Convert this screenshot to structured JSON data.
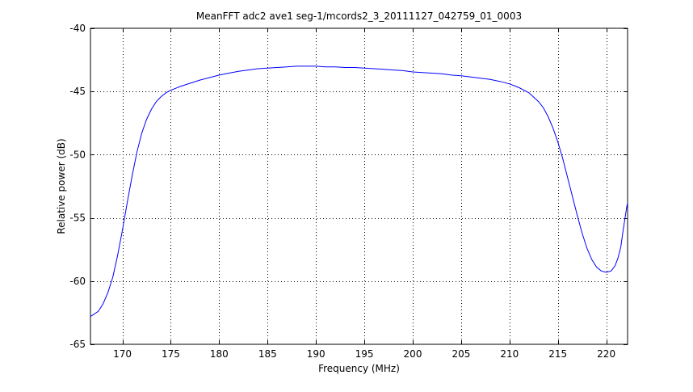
{
  "chart_data": {
    "type": "line",
    "title": "MeanFFT adc2 ave1 seg-1/mcords2_3_20111127_042759_01_0003",
    "xlabel": "Frequency (MHz)",
    "ylabel": "Relative power (dB)",
    "xlim": [
      166.7,
      222.2
    ],
    "ylim": [
      -65,
      -40
    ],
    "xticks": [
      170,
      175,
      180,
      185,
      190,
      195,
      200,
      205,
      210,
      215,
      220
    ],
    "yticks": [
      -40,
      -45,
      -50,
      -55,
      -60,
      -65
    ],
    "grid": true,
    "grid_style": "dotted",
    "series": [
      {
        "color": "#0000ff",
        "x": [
          166.7,
          167.5,
          168.0,
          168.5,
          169.0,
          169.5,
          170.0,
          170.5,
          171.0,
          171.5,
          172.0,
          172.5,
          173.0,
          173.5,
          174.0,
          174.5,
          175.0,
          175.5,
          176.0,
          177.0,
          178.0,
          179.0,
          180.0,
          181.0,
          182.0,
          183.0,
          184.0,
          185.0,
          186.0,
          187.0,
          188.0,
          189.0,
          190.0,
          191.0,
          192.0,
          193.0,
          194.0,
          195.0,
          196.0,
          197.0,
          198.0,
          199.0,
          200.0,
          201.0,
          202.0,
          203.0,
          204.0,
          205.0,
          206.0,
          207.0,
          208.0,
          209.0,
          210.0,
          211.0,
          212.0,
          213.0,
          213.5,
          214.0,
          214.5,
          215.0,
          215.5,
          216.0,
          216.5,
          217.0,
          217.5,
          218.0,
          218.5,
          219.0,
          219.5,
          220.0,
          220.5,
          220.9,
          221.2,
          221.5,
          221.7,
          221.9,
          222.1,
          222.2
        ],
        "y": [
          -62.8,
          -62.4,
          -61.8,
          -60.9,
          -59.7,
          -58.0,
          -56.0,
          -53.8,
          -51.7,
          -49.8,
          -48.3,
          -47.2,
          -46.4,
          -45.8,
          -45.4,
          -45.1,
          -44.9,
          -44.75,
          -44.6,
          -44.35,
          -44.1,
          -43.9,
          -43.7,
          -43.55,
          -43.4,
          -43.3,
          -43.2,
          -43.15,
          -43.1,
          -43.05,
          -43.0,
          -43.0,
          -43.0,
          -43.05,
          -43.05,
          -43.1,
          -43.1,
          -43.15,
          -43.2,
          -43.25,
          -43.3,
          -43.35,
          -43.45,
          -43.5,
          -43.55,
          -43.6,
          -43.7,
          -43.75,
          -43.85,
          -43.95,
          -44.05,
          -44.2,
          -44.4,
          -44.7,
          -45.1,
          -45.8,
          -46.3,
          -47.0,
          -47.9,
          -49.0,
          -50.3,
          -51.8,
          -53.3,
          -54.8,
          -56.2,
          -57.4,
          -58.3,
          -58.9,
          -59.2,
          -59.3,
          -59.2,
          -58.8,
          -58.2,
          -57.3,
          -56.2,
          -55.2,
          -54.2,
          -53.8
        ]
      }
    ]
  }
}
